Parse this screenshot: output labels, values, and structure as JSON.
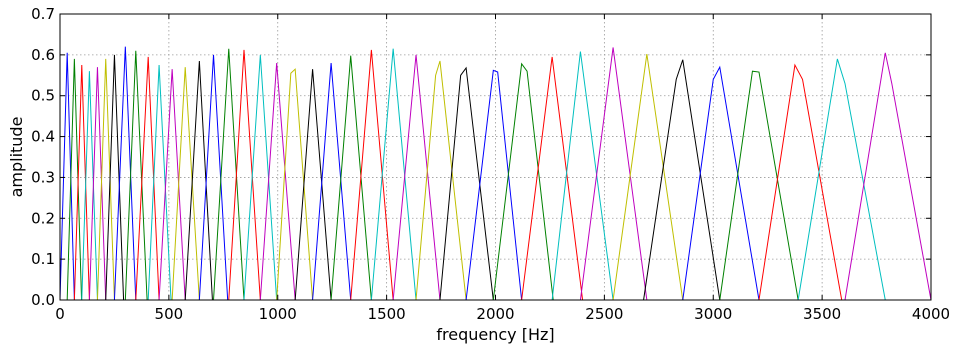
{
  "chart_data": {
    "type": "line",
    "title": "",
    "xlabel": "frequency [Hz]",
    "ylabel": "amplitude",
    "xlim": [
      0,
      4000
    ],
    "ylim": [
      0,
      0.7
    ],
    "xticks": [
      0,
      500,
      1000,
      1500,
      2000,
      2500,
      3000,
      3500,
      4000
    ],
    "yticks": [
      0.0,
      0.1,
      0.2,
      0.3,
      0.4,
      0.5,
      0.6,
      0.7
    ],
    "xtick_labels": [
      "0",
      "500",
      "1000",
      "1500",
      "2000",
      "2500",
      "3000",
      "3500",
      "4000"
    ],
    "ytick_labels": [
      "0.0",
      "0.1",
      "0.2",
      "0.3",
      "0.4",
      "0.5",
      "0.6",
      "0.7"
    ],
    "grid": true,
    "legend": "none",
    "color_cycle": [
      "#0000ff",
      "#008000",
      "#ff0000",
      "#00bfbf",
      "#bf00bf",
      "#bfbf00",
      "#000000"
    ],
    "series": [
      {
        "color": "#0000ff",
        "points": [
          [
            0,
            0
          ],
          [
            33,
            0.605
          ],
          [
            66,
            0
          ]
        ]
      },
      {
        "color": "#008000",
        "points": [
          [
            33,
            0
          ],
          [
            66,
            0.59
          ],
          [
            99,
            0
          ]
        ]
      },
      {
        "color": "#ff0000",
        "points": [
          [
            66,
            0
          ],
          [
            100,
            0.575
          ],
          [
            135,
            0
          ]
        ]
      },
      {
        "color": "#00bfbf",
        "points": [
          [
            100,
            0
          ],
          [
            135,
            0.56
          ],
          [
            172,
            0
          ]
        ]
      },
      {
        "color": "#bf00bf",
        "points": [
          [
            135,
            0
          ],
          [
            172,
            0.57
          ],
          [
            210,
            0
          ]
        ]
      },
      {
        "color": "#bfbf00",
        "points": [
          [
            172,
            0
          ],
          [
            210,
            0.59
          ],
          [
            250,
            0
          ]
        ]
      },
      {
        "color": "#000000",
        "points": [
          [
            210,
            0
          ],
          [
            250,
            0.6
          ],
          [
            292,
            0
          ]
        ]
      },
      {
        "color": "#0000ff",
        "points": [
          [
            250,
            0
          ],
          [
            300,
            0.62
          ],
          [
            348,
            0
          ]
        ]
      },
      {
        "color": "#008000",
        "points": [
          [
            300,
            0
          ],
          [
            348,
            0.61
          ],
          [
            400,
            0
          ]
        ]
      },
      {
        "color": "#ff0000",
        "points": [
          [
            348,
            0
          ],
          [
            405,
            0.595
          ],
          [
            455,
            0
          ]
        ]
      },
      {
        "color": "#00bfbf",
        "points": [
          [
            405,
            0
          ],
          [
            455,
            0.575
          ],
          [
            510,
            0
          ]
        ]
      },
      {
        "color": "#bf00bf",
        "points": [
          [
            455,
            0
          ],
          [
            515,
            0.565
          ],
          [
            575,
            0
          ]
        ]
      },
      {
        "color": "#bfbf00",
        "points": [
          [
            515,
            0
          ],
          [
            575,
            0.57
          ],
          [
            640,
            0
          ]
        ]
      },
      {
        "color": "#000000",
        "points": [
          [
            575,
            0
          ],
          [
            640,
            0.585
          ],
          [
            700,
            0
          ]
        ]
      },
      {
        "color": "#0000ff",
        "points": [
          [
            640,
            0
          ],
          [
            705,
            0.6
          ],
          [
            770,
            0
          ]
        ]
      },
      {
        "color": "#008000",
        "points": [
          [
            705,
            0
          ],
          [
            775,
            0.615
          ],
          [
            845,
            0
          ]
        ]
      },
      {
        "color": "#ff0000",
        "points": [
          [
            775,
            0
          ],
          [
            845,
            0.612
          ],
          [
            920,
            0
          ]
        ]
      },
      {
        "color": "#00bfbf",
        "points": [
          [
            845,
            0
          ],
          [
            920,
            0.6
          ],
          [
            995,
            0
          ]
        ]
      },
      {
        "color": "#bf00bf",
        "points": [
          [
            920,
            0
          ],
          [
            995,
            0.58
          ],
          [
            1080,
            0
          ]
        ]
      },
      {
        "color": "#bfbf00",
        "points": [
          [
            995,
            0
          ],
          [
            1060,
            0.555
          ],
          [
            1080,
            0.565
          ],
          [
            1160,
            0
          ]
        ]
      },
      {
        "color": "#000000",
        "points": [
          [
            1080,
            0
          ],
          [
            1160,
            0.565
          ],
          [
            1245,
            0
          ]
        ]
      },
      {
        "color": "#0000ff",
        "points": [
          [
            1160,
            0
          ],
          [
            1245,
            0.58
          ],
          [
            1335,
            0
          ]
        ]
      },
      {
        "color": "#008000",
        "points": [
          [
            1245,
            0
          ],
          [
            1335,
            0.598
          ],
          [
            1430,
            0
          ]
        ]
      },
      {
        "color": "#ff0000",
        "points": [
          [
            1335,
            0
          ],
          [
            1430,
            0.612
          ],
          [
            1530,
            0
          ]
        ]
      },
      {
        "color": "#00bfbf",
        "points": [
          [
            1430,
            0
          ],
          [
            1530,
            0.615
          ],
          [
            1635,
            0
          ]
        ]
      },
      {
        "color": "#bf00bf",
        "points": [
          [
            1530,
            0
          ],
          [
            1635,
            0.6
          ],
          [
            1745,
            0
          ]
        ]
      },
      {
        "color": "#bfbf00",
        "points": [
          [
            1635,
            0
          ],
          [
            1725,
            0.55
          ],
          [
            1745,
            0.585
          ],
          [
            1865,
            0
          ]
        ]
      },
      {
        "color": "#000000",
        "points": [
          [
            1745,
            0
          ],
          [
            1840,
            0.55
          ],
          [
            1865,
            0.568
          ],
          [
            1990,
            0
          ]
        ]
      },
      {
        "color": "#0000ff",
        "points": [
          [
            1865,
            0
          ],
          [
            1990,
            0.562
          ],
          [
            2010,
            0.558
          ],
          [
            2120,
            0
          ]
        ]
      },
      {
        "color": "#008000",
        "points": [
          [
            1990,
            0
          ],
          [
            2120,
            0.578
          ],
          [
            2145,
            0.56
          ],
          [
            2265,
            0
          ]
        ]
      },
      {
        "color": "#ff0000",
        "points": [
          [
            2120,
            0
          ],
          [
            2260,
            0.595
          ],
          [
            2400,
            0
          ]
        ]
      },
      {
        "color": "#00bfbf",
        "points": [
          [
            2260,
            0
          ],
          [
            2390,
            0.608
          ],
          [
            2540,
            0
          ]
        ]
      },
      {
        "color": "#bf00bf",
        "points": [
          [
            2390,
            0
          ],
          [
            2540,
            0.618
          ],
          [
            2695,
            0
          ]
        ]
      },
      {
        "color": "#bfbf00",
        "points": [
          [
            2540,
            0
          ],
          [
            2695,
            0.602
          ],
          [
            2860,
            0
          ]
        ]
      },
      {
        "color": "#000000",
        "points": [
          [
            2680,
            0
          ],
          [
            2830,
            0.54
          ],
          [
            2860,
            0.588
          ],
          [
            3030,
            0
          ]
        ]
      },
      {
        "color": "#0000ff",
        "points": [
          [
            2860,
            0
          ],
          [
            3000,
            0.54
          ],
          [
            3030,
            0.57
          ],
          [
            3210,
            0
          ]
        ]
      },
      {
        "color": "#008000",
        "points": [
          [
            3030,
            0
          ],
          [
            3180,
            0.56
          ],
          [
            3210,
            0.558
          ],
          [
            3390,
            0
          ]
        ]
      },
      {
        "color": "#ff0000",
        "points": [
          [
            3210,
            0
          ],
          [
            3375,
            0.575
          ],
          [
            3410,
            0.54
          ],
          [
            3590,
            0
          ],
          [
            3610,
            0
          ]
        ]
      },
      {
        "color": "#00bfbf",
        "points": [
          [
            3390,
            0
          ],
          [
            3570,
            0.59
          ],
          [
            3605,
            0.53
          ],
          [
            3790,
            0
          ],
          [
            3810,
            0
          ]
        ]
      },
      {
        "color": "#bf00bf",
        "points": [
          [
            3605,
            0
          ],
          [
            3790,
            0.605
          ],
          [
            3820,
            0.53
          ],
          [
            4000,
            0
          ]
        ]
      }
    ]
  }
}
